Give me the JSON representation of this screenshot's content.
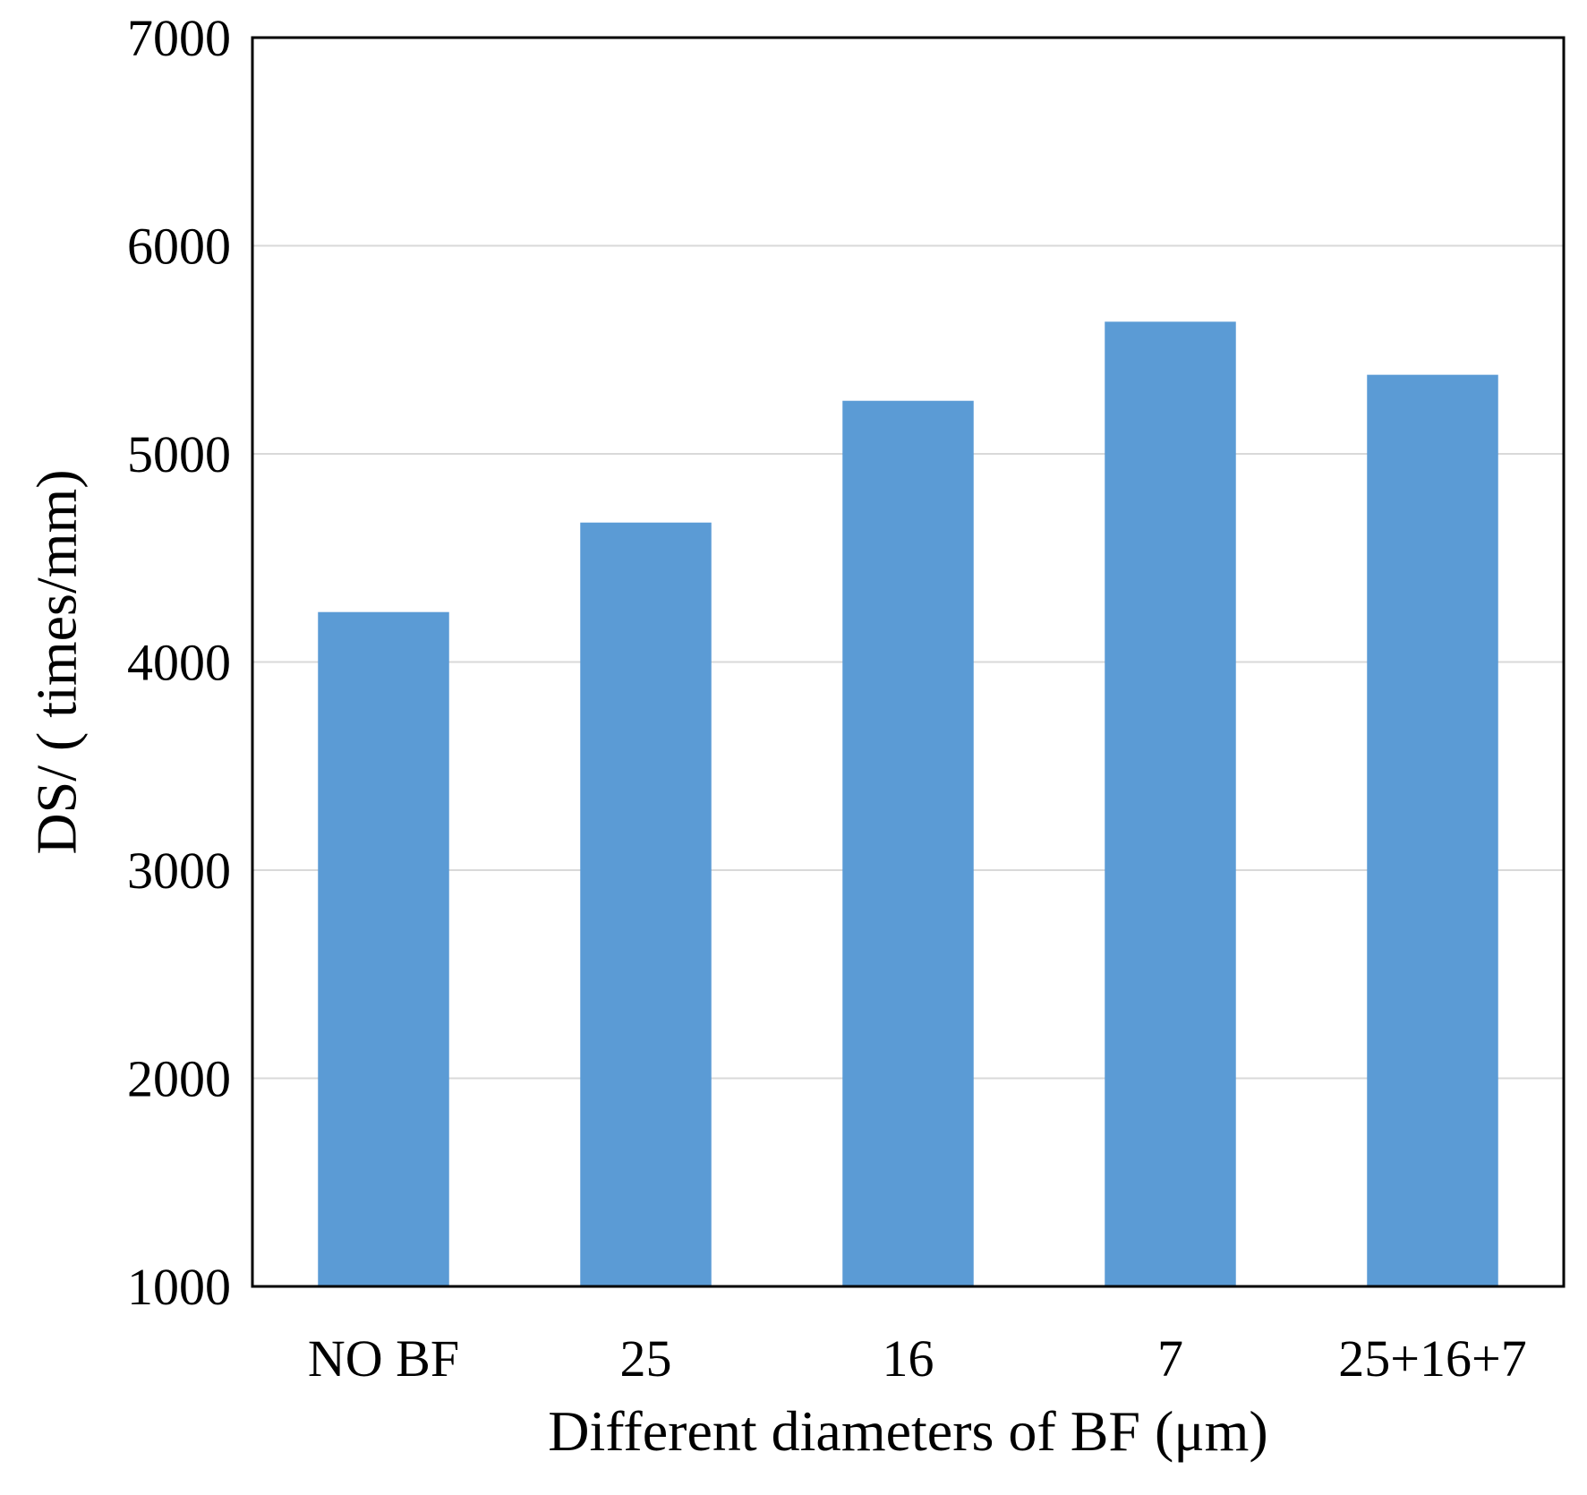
{
  "chart_data": {
    "type": "bar",
    "title": "",
    "xlabel": "Different diameters of BF (μm)",
    "ylabel": "DS/ ( times/mm)",
    "categories": [
      "NO BF",
      "25",
      "16",
      "7",
      "25+16+7"
    ],
    "values": [
      4240,
      4670,
      5255,
      5635,
      5380
    ],
    "ylim": [
      1000,
      7000
    ],
    "yticks": [
      1000,
      2000,
      3000,
      4000,
      5000,
      6000,
      7000
    ],
    "ytick_labels": [
      "1000",
      "2000",
      "3000",
      "4000",
      "5000",
      "6000",
      "7000"
    ],
    "grid": true,
    "legend": "none",
    "colors": {
      "bar": "#5b9bd5",
      "grid": "#d9d9d9",
      "axis": "#000000"
    }
  }
}
